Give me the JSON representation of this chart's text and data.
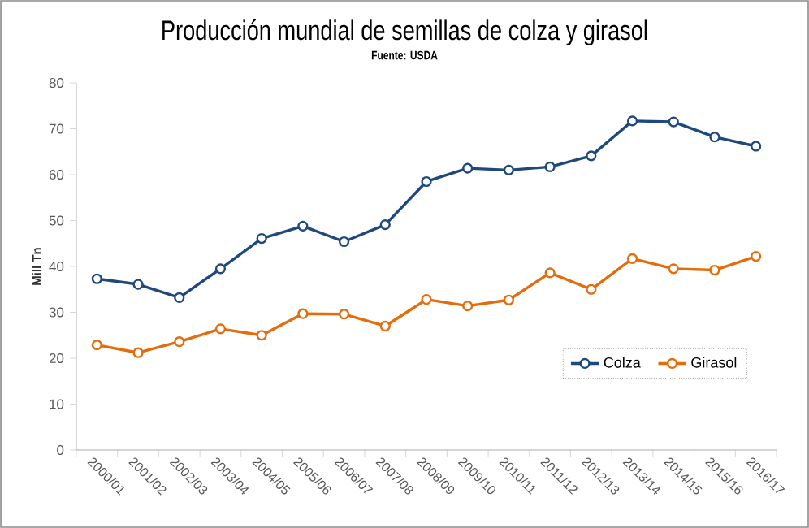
{
  "chart_data": {
    "type": "line",
    "title": "Producción mundial de semillas de colza y girasol",
    "annotations": [
      "Fuente: USDA"
    ],
    "ylabel": "Mill Tn",
    "categories": [
      "2000/01",
      "2001/02",
      "2002/03",
      "2003/04",
      "2004/05",
      "2005/06",
      "2006/07",
      "2007/08",
      "2008/09",
      "2009/10",
      "2010/11",
      "2011/12",
      "2012/13",
      "2013/14",
      "2014/15",
      "2015/16",
      "2016/17"
    ],
    "series": [
      {
        "name": "Colza",
        "color": "#1f497d",
        "values": [
          37.3,
          36.1,
          33.2,
          39.5,
          46.1,
          48.8,
          45.4,
          49.1,
          58.5,
          61.4,
          61.0,
          61.7,
          64.1,
          71.7,
          71.5,
          68.2,
          66.2
        ]
      },
      {
        "name": "Girasol",
        "color": "#e46c0a",
        "values": [
          22.9,
          21.2,
          23.6,
          26.4,
          25.0,
          29.7,
          29.6,
          27.0,
          32.8,
          31.4,
          32.7,
          38.6,
          35.0,
          41.7,
          39.5,
          39.2,
          42.2
        ]
      }
    ],
    "ylim": [
      0,
      80
    ],
    "yticks": [
      0,
      10,
      20,
      30,
      40,
      50,
      60,
      70,
      80
    ],
    "legend": "bottom right",
    "marker": "circle",
    "line_style": "solid"
  }
}
